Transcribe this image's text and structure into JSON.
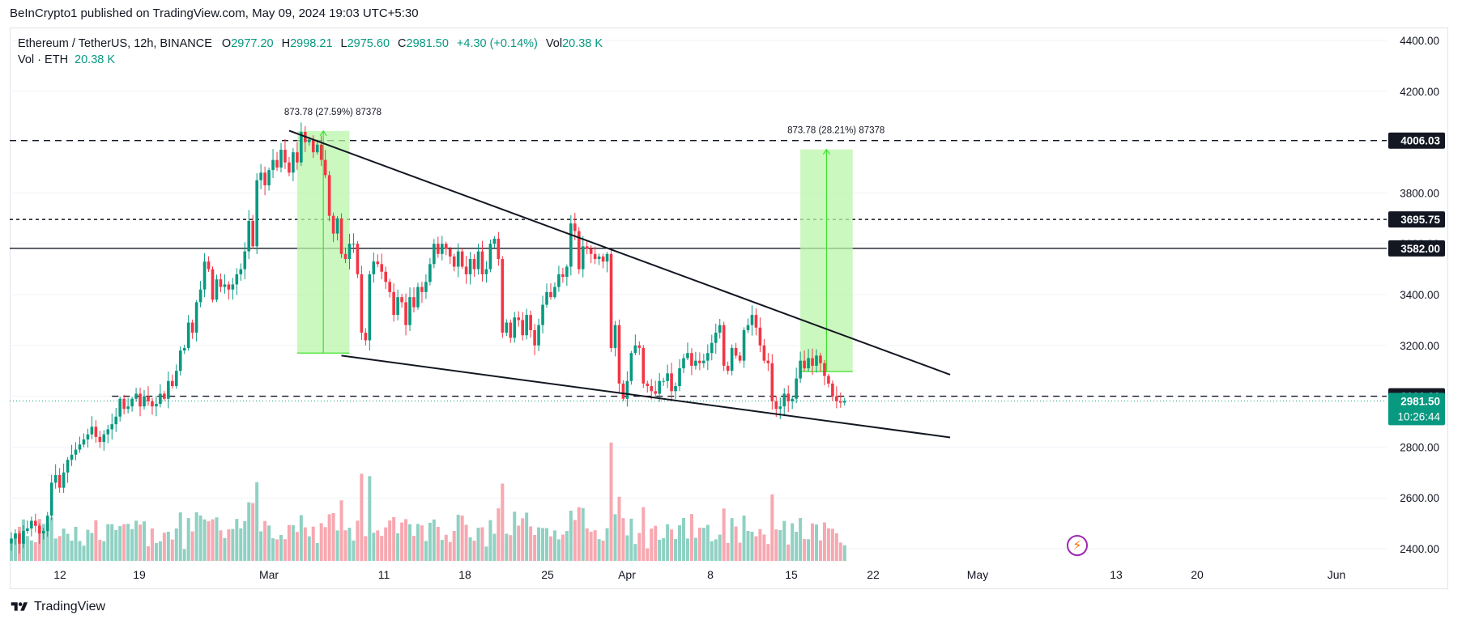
{
  "header": {
    "published": "BeInCrypto1 published on TradingView.com, May 09, 2024 19:03 UTC+5:30"
  },
  "legend": {
    "symbol": "Ethereum / TetherUS, 12h, BINANCE",
    "open_label": "O",
    "open": "2977.20",
    "high_label": "H",
    "high": "2998.21",
    "low_label": "L",
    "low": "2975.60",
    "close_label": "C",
    "close": "2981.50",
    "change": "+4.30 (+0.14%)",
    "vol_label": "Vol",
    "vol": "20.38 K",
    "vol_indicator_label": "Vol · ETH",
    "vol_indicator_value": "20.38 K"
  },
  "footer": {
    "brand": "TradingView"
  },
  "colors": {
    "up": "#089981",
    "down": "#f23645",
    "volume_up": "#8fd1c3",
    "volume_down": "#f7a8b0",
    "measure_fill": "#b9f6a9",
    "measure_line": "#3ee02f"
  },
  "chart_data": {
    "type": "candlestick",
    "symbol": "ETHUSDT",
    "timeframe": "12h",
    "y_axis": {
      "ticks": [
        2400,
        2600,
        2800,
        3000,
        3200,
        3400,
        3600,
        3800,
        4000,
        4200,
        4400
      ],
      "tick_labels": [
        "2400.00",
        "2600.00",
        "2800.00",
        "3000.00",
        "3200.00",
        "3400.00",
        "3600.00",
        "3800.00",
        "4000.00",
        "4200.00",
        "4400.00"
      ],
      "ylim": [
        2360,
        4440
      ]
    },
    "x_axis": {
      "tick_labels": [
        "12",
        "19",
        "Mar",
        "11",
        "18",
        "25",
        "Apr",
        "8",
        "15",
        "22",
        "May",
        "13",
        "20",
        "Jun"
      ],
      "first_bar_date": "2024-02-07"
    },
    "closes": [
      2440,
      2460,
      2420,
      2470,
      2480,
      2510,
      2490,
      2460,
      2470,
      2530,
      2660,
      2690,
      2640,
      2700,
      2750,
      2770,
      2790,
      2810,
      2830,
      2850,
      2880,
      2840,
      2820,
      2850,
      2870,
      2890,
      2920,
      2990,
      2950,
      2960,
      2990,
      3010,
      2960,
      3000,
      2980,
      2960,
      2970,
      3010,
      2990,
      3060,
      3040,
      3100,
      3180,
      3190,
      3290,
      3250,
      3370,
      3420,
      3530,
      3500,
      3380,
      3460,
      3430,
      3440,
      3420,
      3440,
      3480,
      3500,
      3570,
      3690,
      3590,
      3850,
      3880,
      3830,
      3890,
      3930,
      3900,
      3970,
      3920,
      3880,
      3960,
      3920,
      4040,
      4000,
      4010,
      3960,
      3990,
      3930,
      3870,
      3710,
      3640,
      3700,
      3560,
      3540,
      3600,
      3600,
      3480,
      3250,
      3220,
      3480,
      3530,
      3520,
      3490,
      3450,
      3410,
      3320,
      3390,
      3370,
      3280,
      3390,
      3350,
      3430,
      3410,
      3450,
      3520,
      3600,
      3560,
      3600,
      3580,
      3550,
      3510,
      3570,
      3510,
      3480,
      3540,
      3500,
      3570,
      3480,
      3500,
      3600,
      3620,
      3540,
      3250,
      3290,
      3230,
      3310,
      3300,
      3240,
      3320,
      3260,
      3200,
      3280,
      3360,
      3410,
      3390,
      3430,
      3480,
      3470,
      3510,
      3680,
      3650,
      3500,
      3590,
      3580,
      3560,
      3540,
      3550,
      3530,
      3560,
      3190,
      3280,
      3050,
      2990,
      3060,
      3170,
      3200,
      3190,
      3050,
      3040,
      3020,
      3010,
      3060,
      3060,
      3090,
      3020,
      3040,
      3110,
      3150,
      3170,
      3120,
      3140,
      3130,
      3140,
      3170,
      3210,
      3250,
      3280,
      3120,
      3100,
      3190,
      3160,
      3140,
      3260,
      3280,
      3320,
      3270,
      3200,
      3140,
      3130,
      2980,
      2950,
      2960,
      3010,
      2980,
      2990,
      3070,
      3140,
      3110,
      3150,
      3120,
      3160,
      3130,
      3080,
      3050,
      3000,
      2980,
      2975,
      2981.5
    ],
    "volume_axis_max": 3000,
    "levels": [
      {
        "price": 4006.03,
        "label": "4006.03",
        "style": "dashed"
      },
      {
        "price": 3695.75,
        "label": "3695.75",
        "style": "dotted"
      },
      {
        "price": 3582.0,
        "label": "3582.00",
        "style": "solid"
      },
      {
        "price": 3000.0,
        "label": "3000.00",
        "style": "dashed"
      }
    ],
    "last_price": {
      "label": "2981.50",
      "countdown": "10:26:44"
    },
    "trendlines": [
      {
        "name": "upper-wedge",
        "from": {
          "bar": 69,
          "price": 4045
        },
        "to": {
          "bar": 199,
          "price": 3085
        }
      },
      {
        "name": "lower-wedge",
        "from": {
          "bar": 82,
          "price": 3160
        },
        "to": {
          "bar": 199,
          "price": 2838
        }
      }
    ],
    "measures": [
      {
        "label": "873.78 (27.59%) 87378",
        "bar_from": 71,
        "bar_to": 84,
        "price_from": 3170,
        "price_to": 4044
      },
      {
        "label": "873.78 (28.21%) 87378",
        "bar_from": 196,
        "bar_to": 209,
        "price_from": 3097,
        "price_to": 3971
      }
    ]
  }
}
